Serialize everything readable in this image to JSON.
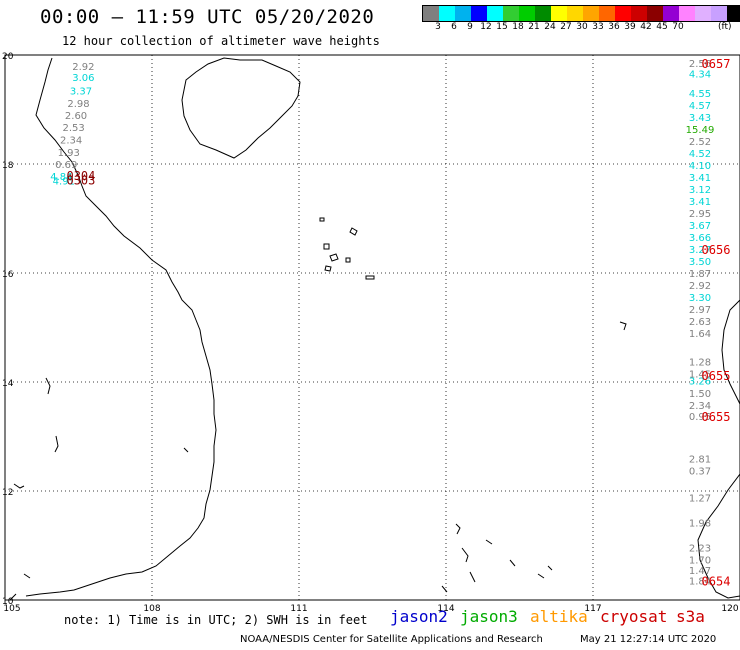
{
  "header": {
    "title": "00:00 – 11:59 UTC 05/20/2020",
    "subtitle": "12 hour collection of altimeter wave heights"
  },
  "scale": {
    "colors": [
      "#7f7f7f",
      "#00ffff",
      "#00b2ee",
      "#0000ff",
      "#00ffff",
      "#32cd32",
      "#00cd00",
      "#008b00",
      "#ffff00",
      "#ffd700",
      "#ffa500",
      "#ff6600",
      "#ff0000",
      "#cd0000",
      "#8b0000",
      "#9400d3",
      "#ff82ff",
      "#e0b0ff",
      "#c8a0ff",
      "#000000"
    ],
    "labels": [
      "",
      "3",
      "6",
      "9",
      "12",
      "15",
      "18",
      "21",
      "24",
      "27",
      "30",
      "33",
      "36",
      "39",
      "42",
      "45",
      "70"
    ],
    "unit": "(ft)"
  },
  "map": {
    "lat_labels": [
      "20",
      "18",
      "16",
      "14",
      "12",
      "10"
    ],
    "lon_labels": [
      "105",
      "108",
      "111",
      "114",
      "117",
      "120"
    ]
  },
  "chart_data": {
    "type": "map",
    "grid": true,
    "xlim": [
      105,
      120
    ],
    "ylim": [
      10,
      20
    ],
    "tracks": [
      {
        "name": "west",
        "values": [
          {
            "v": "2.92",
            "color": "#808080",
            "lon": 106.6,
            "lat": 19.8
          },
          {
            "v": "3.06",
            "color": "#00d5d5",
            "lon": 106.6,
            "lat": 19.6
          },
          {
            "v": "3.37",
            "color": "#00d5d5",
            "lon": 106.55,
            "lat": 19.35
          },
          {
            "v": "2.98",
            "color": "#808080",
            "lon": 106.5,
            "lat": 19.12
          },
          {
            "v": "2.60",
            "color": "#808080",
            "lon": 106.45,
            "lat": 18.9
          },
          {
            "v": "2.53",
            "color": "#808080",
            "lon": 106.4,
            "lat": 18.68
          },
          {
            "v": "2.34",
            "color": "#808080",
            "lon": 106.35,
            "lat": 18.45
          },
          {
            "v": "1.93",
            "color": "#808080",
            "lon": 106.3,
            "lat": 18.22
          },
          {
            "v": "0.69",
            "color": "#808080",
            "lon": 106.25,
            "lat": 18.0
          },
          {
            "v": "4.84",
            "color": "#00d5d5",
            "lon": 106.15,
            "lat": 17.78
          },
          {
            "v": "4.91",
            "color": "#00d5d5",
            "lon": 106.2,
            "lat": 17.7
          }
        ]
      },
      {
        "name": "east",
        "values": [
          {
            "v": "2.56",
            "color": "#808080",
            "lon": 119.3,
            "lat": 19.85
          },
          {
            "v": "4.34",
            "color": "#00d5d5",
            "lon": 119.3,
            "lat": 19.66
          },
          {
            "v": "4.55",
            "color": "#00d5d5",
            "lon": 119.35,
            "lat": 19.3
          },
          {
            "v": "4.57",
            "color": "#00d5d5",
            "lon": 119.35,
            "lat": 19.08
          },
          {
            "v": "3.43",
            "color": "#00d5d5",
            "lon": 119.4,
            "lat": 18.86
          },
          {
            "v": "15.49",
            "color": "#22aa00",
            "lon": 119.45,
            "lat": 18.64
          },
          {
            "v": "2.52",
            "color": "#808080",
            "lon": 119.45,
            "lat": 18.42
          },
          {
            "v": "4.52",
            "color": "#00d5d5",
            "lon": 119.5,
            "lat": 18.2
          },
          {
            "v": "4.10",
            "color": "#00d5d5",
            "lon": 119.5,
            "lat": 17.98
          },
          {
            "v": "3.41",
            "color": "#00d5d5",
            "lon": 119.5,
            "lat": 17.76
          },
          {
            "v": "3.12",
            "color": "#00d5d5",
            "lon": 119.5,
            "lat": 17.54
          },
          {
            "v": "3.41",
            "color": "#00d5d5",
            "lon": 119.5,
            "lat": 17.32
          },
          {
            "v": "2.95",
            "color": "#808080",
            "lon": 119.5,
            "lat": 17.1
          },
          {
            "v": "3.67",
            "color": "#00d5d5",
            "lon": 119.5,
            "lat": 16.88
          },
          {
            "v": "3.66",
            "color": "#00d5d5",
            "lon": 119.5,
            "lat": 16.66
          },
          {
            "v": "3.27",
            "color": "#00d5d5",
            "lon": 119.5,
            "lat": 16.44
          },
          {
            "v": "3.50",
            "color": "#00d5d5",
            "lon": 119.55,
            "lat": 16.22
          },
          {
            "v": "1.87",
            "color": "#808080",
            "lon": 119.55,
            "lat": 16.0
          },
          {
            "v": "2.92",
            "color": "#808080",
            "lon": 119.55,
            "lat": 15.78
          },
          {
            "v": "3.30",
            "color": "#00d5d5",
            "lon": 119.6,
            "lat": 15.56
          },
          {
            "v": "2.97",
            "color": "#808080",
            "lon": 119.6,
            "lat": 15.34
          },
          {
            "v": "2.63",
            "color": "#808080",
            "lon": 119.6,
            "lat": 15.12
          },
          {
            "v": "1.64",
            "color": "#808080",
            "lon": 119.65,
            "lat": 14.9
          },
          {
            "v": "1.28",
            "color": "#808080",
            "lon": 119.75,
            "lat": 14.38
          },
          {
            "v": "1.45",
            "color": "#808080",
            "lon": 119.78,
            "lat": 14.16
          },
          {
            "v": "3.26",
            "color": "#00d5d5",
            "lon": 119.78,
            "lat": 14.03
          },
          {
            "v": "1.50",
            "color": "#808080",
            "lon": 119.8,
            "lat": 13.8
          },
          {
            "v": "2.34",
            "color": "#808080",
            "lon": 119.8,
            "lat": 13.58
          },
          {
            "v": "0.95",
            "color": "#808080",
            "lon": 119.8,
            "lat": 13.38
          },
          {
            "v": "2.81",
            "color": "#808080",
            "lon": 119.95,
            "lat": 12.6
          },
          {
            "v": "0.37",
            "color": "#808080",
            "lon": 119.95,
            "lat": 12.38
          },
          {
            "v": "1.27",
            "color": "#808080",
            "lon": 120.05,
            "lat": 11.88
          },
          {
            "v": "1.98",
            "color": "#808080",
            "lon": 120.1,
            "lat": 11.42
          },
          {
            "v": "2.23",
            "color": "#808080",
            "lon": 120.15,
            "lat": 10.96
          },
          {
            "v": "1.70",
            "color": "#808080",
            "lon": 120.2,
            "lat": 10.74
          },
          {
            "v": "1.47",
            "color": "#808080",
            "lon": 120.22,
            "lat": 10.55
          },
          {
            "v": "1.84",
            "color": "#808080",
            "lon": 120.25,
            "lat": 10.36
          }
        ]
      }
    ],
    "time_labels": [
      {
        "t": "0304",
        "color": "#8b0000",
        "lon": 106.55,
        "lat": 17.8
      },
      {
        "t": "0303",
        "color": "#8b0000",
        "lon": 106.55,
        "lat": 17.72
      },
      {
        "t": "0657",
        "color": "#dd0000",
        "lon": 120.1,
        "lat": 19.85
      },
      {
        "t": "0656",
        "color": "#dd0000",
        "lon": 120.5,
        "lat": 16.44
      },
      {
        "t": "0655",
        "color": "#dd0000",
        "lon": 120.6,
        "lat": 14.13
      },
      {
        "t": "0655",
        "color": "#dd0000",
        "lon": 120.5,
        "lat": 13.38
      },
      {
        "t": "0654",
        "color": "#dd0000",
        "lon": 120.75,
        "lat": 10.36
      }
    ]
  },
  "footer": {
    "note": "note: 1) Time is in UTC; 2) SWH is in feet",
    "satellites": [
      {
        "name": "jason2",
        "color": "#0000cc"
      },
      {
        "name": "jason3",
        "color": "#00aa00"
      },
      {
        "name": "altika",
        "color": "#ff9900"
      },
      {
        "name": "cryosat",
        "color": "#cc0000"
      },
      {
        "name": "s3a",
        "color": "#cc0000"
      }
    ],
    "credit": "NOAA/NESDIS Center for Satellite Applications and Research",
    "timestamp": "May 21 12:27:14 UTC 2020"
  }
}
